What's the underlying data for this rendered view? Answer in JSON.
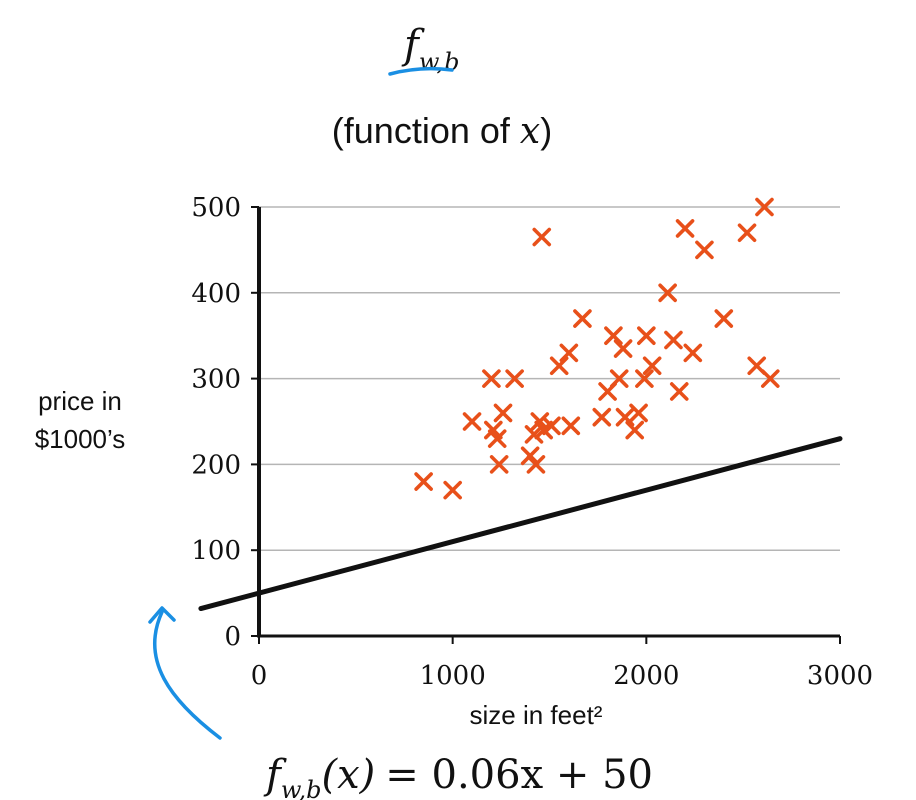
{
  "title": {
    "symbol": "f",
    "subscript": "w,b",
    "subtitle_prefix": "(function of ",
    "subtitle_var": "x",
    "subtitle_suffix": ")"
  },
  "equation": {
    "lhs_symbol": "f",
    "lhs_subscript": "w,b",
    "lhs_arg": "(x)",
    "rhs": "= 0.06x + 50"
  },
  "colors": {
    "points": "#e8501a",
    "line": "#111111",
    "grid": "#b5b5b5",
    "annotation": "#1a8fe3"
  },
  "chart_data": {
    "type": "scatter",
    "xlabel": "size in feet²",
    "ylabel_lines": [
      "price in",
      "$1000’s"
    ],
    "xlim": [
      0,
      3000
    ],
    "ylim": [
      0,
      500
    ],
    "xticks": [
      0,
      1000,
      2000,
      3000
    ],
    "yticks": [
      0,
      100,
      200,
      300,
      400,
      500
    ],
    "grid": "horizontal",
    "marker": "x",
    "points": [
      [
        850,
        180
      ],
      [
        1000,
        170
      ],
      [
        1100,
        250
      ],
      [
        1200,
        300
      ],
      [
        1210,
        240
      ],
      [
        1230,
        230
      ],
      [
        1240,
        200
      ],
      [
        1260,
        260
      ],
      [
        1320,
        300
      ],
      [
        1400,
        210
      ],
      [
        1420,
        235
      ],
      [
        1430,
        200
      ],
      [
        1450,
        250
      ],
      [
        1460,
        465
      ],
      [
        1470,
        240
      ],
      [
        1510,
        245
      ],
      [
        1550,
        315
      ],
      [
        1600,
        330
      ],
      [
        1610,
        245
      ],
      [
        1670,
        370
      ],
      [
        1770,
        255
      ],
      [
        1800,
        285
      ],
      [
        1830,
        350
      ],
      [
        1860,
        300
      ],
      [
        1880,
        335
      ],
      [
        1890,
        255
      ],
      [
        1940,
        240
      ],
      [
        1960,
        260
      ],
      [
        1990,
        300
      ],
      [
        2000,
        350
      ],
      [
        2030,
        315
      ],
      [
        2110,
        400
      ],
      [
        2140,
        345
      ],
      [
        2170,
        285
      ],
      [
        2200,
        475
      ],
      [
        2240,
        330
      ],
      [
        2300,
        450
      ],
      [
        2400,
        370
      ],
      [
        2520,
        470
      ],
      [
        2570,
        315
      ],
      [
        2610,
        500
      ],
      [
        2640,
        300
      ]
    ],
    "line": {
      "slope": 0.06,
      "intercept": 50,
      "x_range": [
        -300,
        3000
      ]
    }
  }
}
